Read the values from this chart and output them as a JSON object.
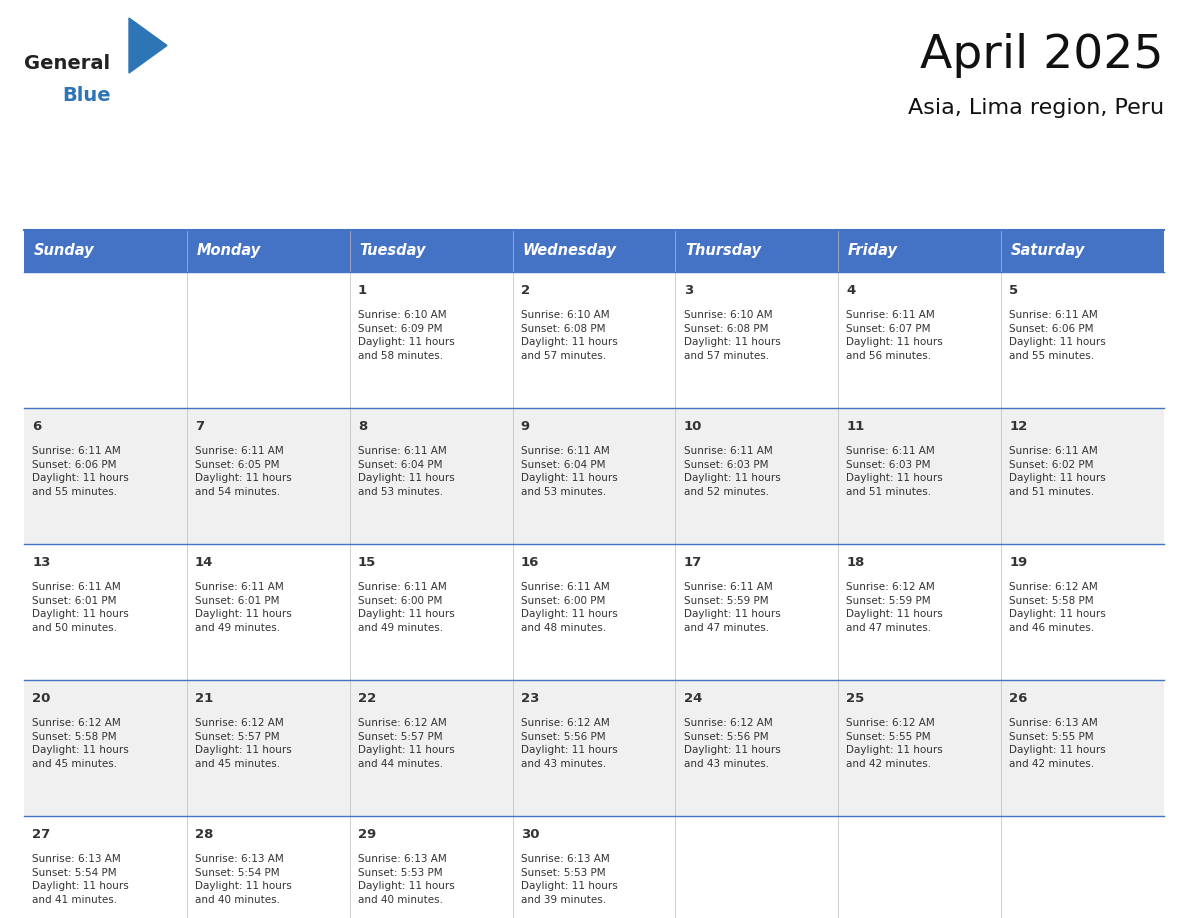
{
  "title": "April 2025",
  "subtitle": "Asia, Lima region, Peru",
  "header_bg": "#4472C4",
  "header_text_color": "#FFFFFF",
  "header_font_size": 10.5,
  "days_of_week": [
    "Sunday",
    "Monday",
    "Tuesday",
    "Wednesday",
    "Thursday",
    "Friday",
    "Saturday"
  ],
  "cell_bg_even": "#FFFFFF",
  "cell_bg_odd": "#F0F0F0",
  "row_line_color": "#4472C4",
  "text_color": "#333333",
  "date_font_size": 9.5,
  "content_font_size": 7.5,
  "title_font_size": 34,
  "subtitle_font_size": 16,
  "logo_general_color": "#222222",
  "logo_blue_color": "#2E75B6",
  "logo_triangle_color": "#2E75B6",
  "weeks": [
    [
      {
        "day": null,
        "text": ""
      },
      {
        "day": null,
        "text": ""
      },
      {
        "day": 1,
        "text": "Sunrise: 6:10 AM\nSunset: 6:09 PM\nDaylight: 11 hours\nand 58 minutes."
      },
      {
        "day": 2,
        "text": "Sunrise: 6:10 AM\nSunset: 6:08 PM\nDaylight: 11 hours\nand 57 minutes."
      },
      {
        "day": 3,
        "text": "Sunrise: 6:10 AM\nSunset: 6:08 PM\nDaylight: 11 hours\nand 57 minutes."
      },
      {
        "day": 4,
        "text": "Sunrise: 6:11 AM\nSunset: 6:07 PM\nDaylight: 11 hours\nand 56 minutes."
      },
      {
        "day": 5,
        "text": "Sunrise: 6:11 AM\nSunset: 6:06 PM\nDaylight: 11 hours\nand 55 minutes."
      }
    ],
    [
      {
        "day": 6,
        "text": "Sunrise: 6:11 AM\nSunset: 6:06 PM\nDaylight: 11 hours\nand 55 minutes."
      },
      {
        "day": 7,
        "text": "Sunrise: 6:11 AM\nSunset: 6:05 PM\nDaylight: 11 hours\nand 54 minutes."
      },
      {
        "day": 8,
        "text": "Sunrise: 6:11 AM\nSunset: 6:04 PM\nDaylight: 11 hours\nand 53 minutes."
      },
      {
        "day": 9,
        "text": "Sunrise: 6:11 AM\nSunset: 6:04 PM\nDaylight: 11 hours\nand 53 minutes."
      },
      {
        "day": 10,
        "text": "Sunrise: 6:11 AM\nSunset: 6:03 PM\nDaylight: 11 hours\nand 52 minutes."
      },
      {
        "day": 11,
        "text": "Sunrise: 6:11 AM\nSunset: 6:03 PM\nDaylight: 11 hours\nand 51 minutes."
      },
      {
        "day": 12,
        "text": "Sunrise: 6:11 AM\nSunset: 6:02 PM\nDaylight: 11 hours\nand 51 minutes."
      }
    ],
    [
      {
        "day": 13,
        "text": "Sunrise: 6:11 AM\nSunset: 6:01 PM\nDaylight: 11 hours\nand 50 minutes."
      },
      {
        "day": 14,
        "text": "Sunrise: 6:11 AM\nSunset: 6:01 PM\nDaylight: 11 hours\nand 49 minutes."
      },
      {
        "day": 15,
        "text": "Sunrise: 6:11 AM\nSunset: 6:00 PM\nDaylight: 11 hours\nand 49 minutes."
      },
      {
        "day": 16,
        "text": "Sunrise: 6:11 AM\nSunset: 6:00 PM\nDaylight: 11 hours\nand 48 minutes."
      },
      {
        "day": 17,
        "text": "Sunrise: 6:11 AM\nSunset: 5:59 PM\nDaylight: 11 hours\nand 47 minutes."
      },
      {
        "day": 18,
        "text": "Sunrise: 6:12 AM\nSunset: 5:59 PM\nDaylight: 11 hours\nand 47 minutes."
      },
      {
        "day": 19,
        "text": "Sunrise: 6:12 AM\nSunset: 5:58 PM\nDaylight: 11 hours\nand 46 minutes."
      }
    ],
    [
      {
        "day": 20,
        "text": "Sunrise: 6:12 AM\nSunset: 5:58 PM\nDaylight: 11 hours\nand 45 minutes."
      },
      {
        "day": 21,
        "text": "Sunrise: 6:12 AM\nSunset: 5:57 PM\nDaylight: 11 hours\nand 45 minutes."
      },
      {
        "day": 22,
        "text": "Sunrise: 6:12 AM\nSunset: 5:57 PM\nDaylight: 11 hours\nand 44 minutes."
      },
      {
        "day": 23,
        "text": "Sunrise: 6:12 AM\nSunset: 5:56 PM\nDaylight: 11 hours\nand 43 minutes."
      },
      {
        "day": 24,
        "text": "Sunrise: 6:12 AM\nSunset: 5:56 PM\nDaylight: 11 hours\nand 43 minutes."
      },
      {
        "day": 25,
        "text": "Sunrise: 6:12 AM\nSunset: 5:55 PM\nDaylight: 11 hours\nand 42 minutes."
      },
      {
        "day": 26,
        "text": "Sunrise: 6:13 AM\nSunset: 5:55 PM\nDaylight: 11 hours\nand 42 minutes."
      }
    ],
    [
      {
        "day": 27,
        "text": "Sunrise: 6:13 AM\nSunset: 5:54 PM\nDaylight: 11 hours\nand 41 minutes."
      },
      {
        "day": 28,
        "text": "Sunrise: 6:13 AM\nSunset: 5:54 PM\nDaylight: 11 hours\nand 40 minutes."
      },
      {
        "day": 29,
        "text": "Sunrise: 6:13 AM\nSunset: 5:53 PM\nDaylight: 11 hours\nand 40 minutes."
      },
      {
        "day": 30,
        "text": "Sunrise: 6:13 AM\nSunset: 5:53 PM\nDaylight: 11 hours\nand 39 minutes."
      },
      {
        "day": null,
        "text": ""
      },
      {
        "day": null,
        "text": ""
      },
      {
        "day": null,
        "text": ""
      }
    ]
  ]
}
